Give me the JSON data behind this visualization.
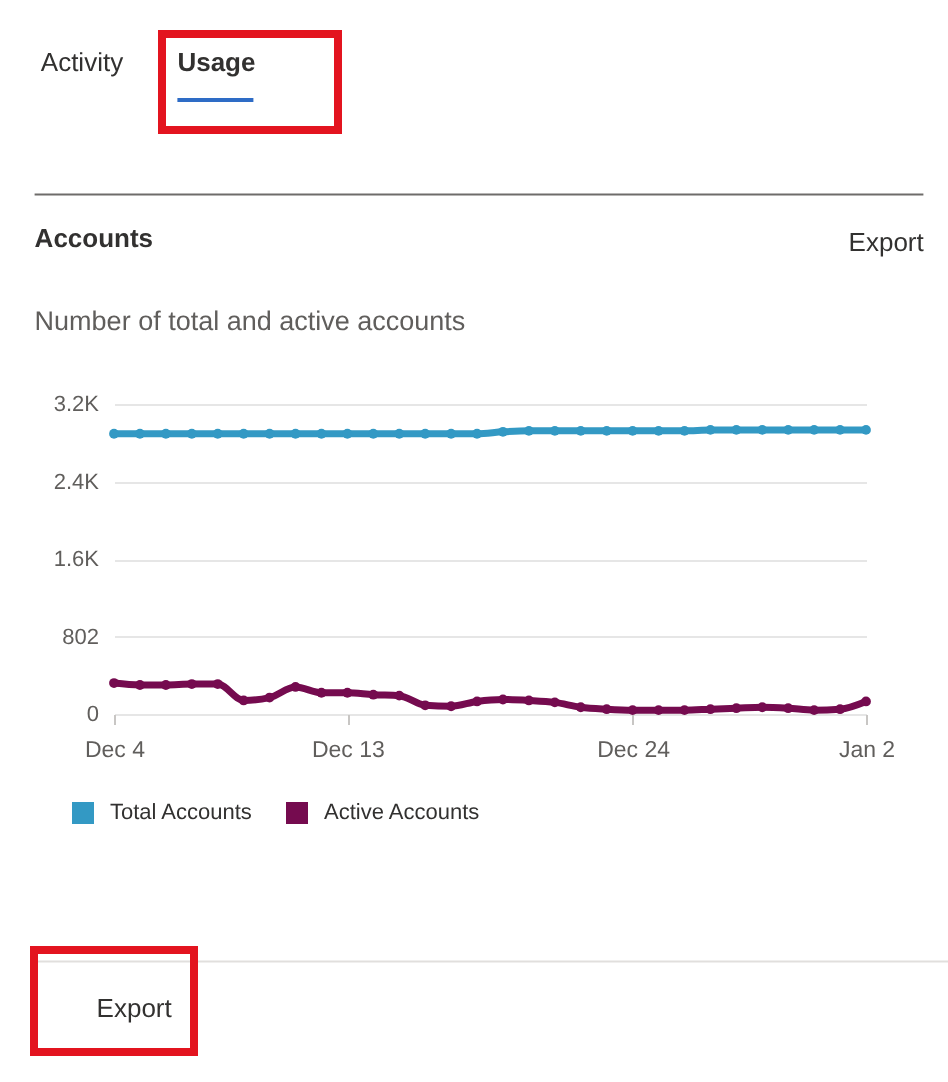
{
  "chart_data": {
    "type": "line",
    "title": "Accounts",
    "subtitle": "Number of total and active accounts",
    "annotations": [
      "Activity",
      "Usage",
      "Export",
      "Export"
    ],
    "categories": [
      "Dec 4",
      null,
      null,
      null,
      null,
      null,
      null,
      null,
      null,
      "Dec 13",
      null,
      null,
      null,
      null,
      null,
      null,
      null,
      null,
      null,
      null,
      "Dec 24",
      null,
      null,
      null,
      null,
      null,
      null,
      null,
      null,
      "Jan 2"
    ],
    "ylim": [
      0,
      3208
    ],
    "yticks": [
      0,
      802,
      {
        "value": 1604,
        "label": "1.6K"
      },
      {
        "value": 2406,
        "label": "2.4K"
      },
      {
        "value": 3208,
        "label": "3.2K"
      }
    ],
    "series": [
      {
        "name": "Total Accounts",
        "color": "#3399c4",
        "values": [
          2900,
          2900,
          2900,
          2900,
          2900,
          2900,
          2900,
          2900,
          2900,
          2900,
          2900,
          2900,
          2900,
          2900,
          2900,
          2920,
          2930,
          2930,
          2930,
          2930,
          2930,
          2930,
          2930,
          2940,
          2940,
          2940,
          2940,
          2940,
          2940,
          2940
        ]
      },
      {
        "name": "Active Accounts",
        "color": "#750b4f",
        "values": [
          320,
          300,
          300,
          310,
          310,
          140,
          170,
          280,
          220,
          220,
          200,
          190,
          90,
          80,
          130,
          150,
          140,
          120,
          70,
          50,
          40,
          40,
          40,
          50,
          60,
          70,
          60,
          40,
          50,
          130
        ]
      }
    ],
    "grid": "y",
    "legend": "bottom left",
    "marker": "circle",
    "line_style": "solid"
  }
}
